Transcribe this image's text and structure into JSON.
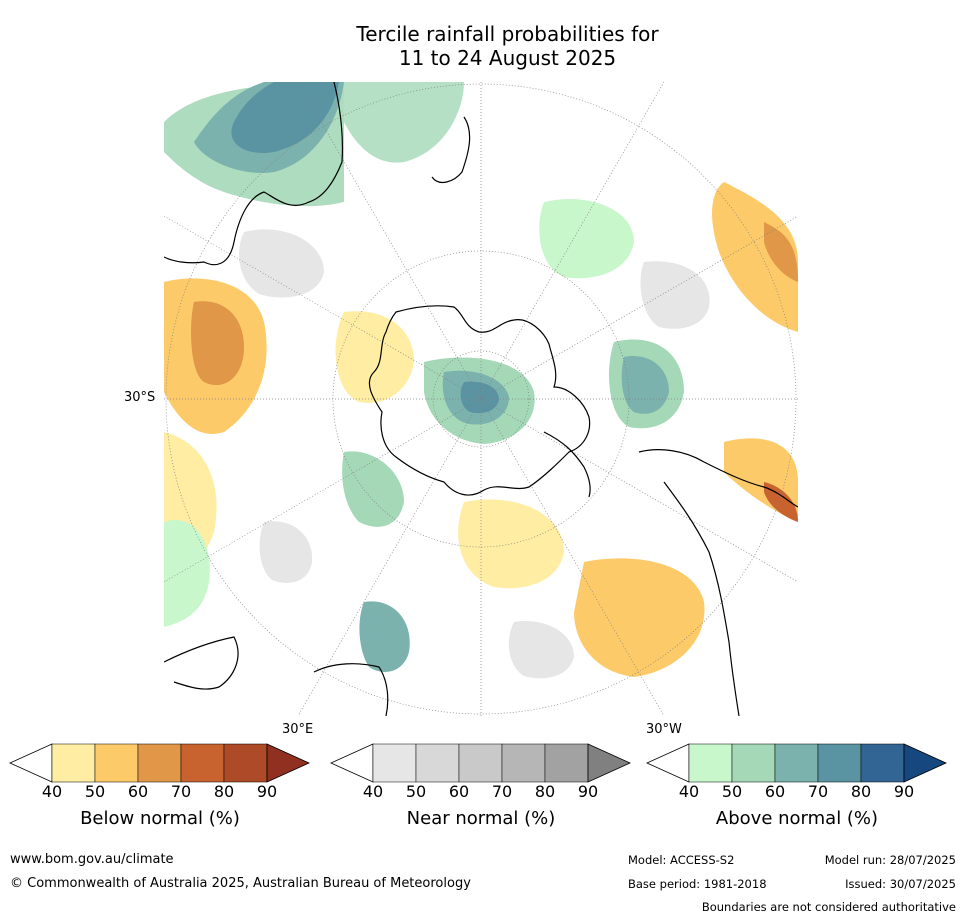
{
  "title": {
    "line1": "Tercile rainfall probabilities for",
    "line2": "11 to 24 August 2025"
  },
  "map": {
    "projection": "south polar stereographic",
    "lat_labels": [
      "30°S"
    ],
    "lon_labels": [
      "30°E",
      "30°W"
    ],
    "coastline_color": "#000000",
    "grid_color": "#808080"
  },
  "colorbars": [
    {
      "label": "Below normal (%)",
      "ticks": [
        "40",
        "50",
        "60",
        "70",
        "80",
        "90"
      ],
      "colors": [
        "#ffffff",
        "#feeda2",
        "#fdca6a",
        "#e09748",
        "#c8632f",
        "#ad4a27",
        "#8f3020"
      ]
    },
    {
      "label": "Near normal (%)",
      "ticks": [
        "40",
        "50",
        "60",
        "70",
        "80",
        "90"
      ],
      "colors": [
        "#ffffff",
        "#e6e6e6",
        "#d8d8d8",
        "#c9c9c9",
        "#b6b6b6",
        "#a2a2a2",
        "#808080"
      ]
    },
    {
      "label": "Above normal (%)",
      "ticks": [
        "40",
        "50",
        "60",
        "70",
        "80",
        "90"
      ],
      "colors": [
        "#ffffff",
        "#c9f7cc",
        "#a4d8b7",
        "#7cb2ad",
        "#5a93a2",
        "#326494",
        "#17477f"
      ]
    }
  ],
  "footer": {
    "website": "www.bom.gov.au/climate",
    "copyright": "© Commonwealth of Australia 2025, Australian Bureau of Meteorology",
    "model": "Model: ACCESS-S2",
    "base_period": "Base period: 1981-2018",
    "model_run": "Model run: 28/07/2025",
    "issued": "Issued: 30/07/2025",
    "disclaimer": "Boundaries are not considered authoritative"
  }
}
